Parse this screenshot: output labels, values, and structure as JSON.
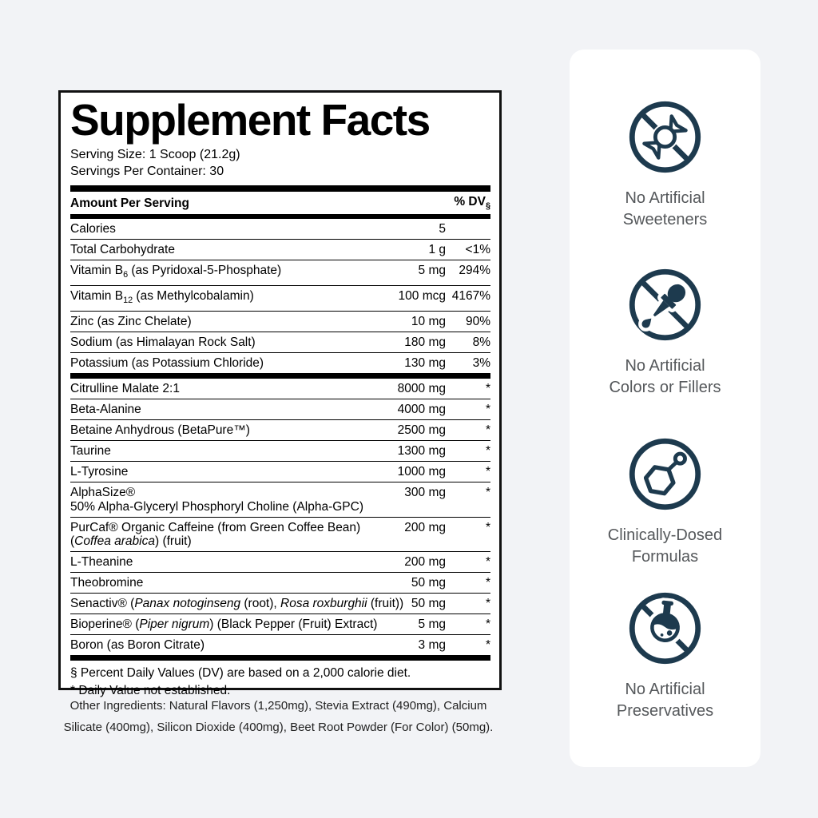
{
  "colors": {
    "icon_navy": "#1d3a4e",
    "badge_text": "#55585b",
    "page_background": "#f2f3f6"
  },
  "supplement_facts": {
    "title": "Supplement Facts",
    "serving_size": "Serving Size: 1 Scoop (21.2g)",
    "servings_per_container": "Servings Per Container: 30",
    "column_header": {
      "left": "Amount Per Serving",
      "right": "% DV",
      "right_subscript": "§"
    },
    "daily_value_rows": [
      {
        "segments": [
          {
            "t": "Calories"
          }
        ],
        "amount": "5",
        "dv": ""
      },
      {
        "segments": [
          {
            "t": "Total Carbohydrate"
          }
        ],
        "amount": "1 g",
        "dv": "<1%"
      },
      {
        "segments": [
          {
            "t": "Vitamin B"
          },
          {
            "t": "6",
            "sub": true
          },
          {
            "t": " (as Pyridoxal-5-Phosphate)"
          }
        ],
        "amount": "5 mg",
        "dv": "294%"
      },
      {
        "segments": [
          {
            "t": "Vitamin B"
          },
          {
            "t": "12",
            "sub": true
          },
          {
            "t": " (as Methylcobalamin)"
          }
        ],
        "amount": "100 mcg",
        "dv": "4167%"
      },
      {
        "segments": [
          {
            "t": "Zinc (as Zinc Chelate)"
          }
        ],
        "amount": "10 mg",
        "dv": "90%"
      },
      {
        "segments": [
          {
            "t": "Sodium (as Himalayan Rock Salt)"
          }
        ],
        "amount": "180 mg",
        "dv": "8%"
      },
      {
        "segments": [
          {
            "t": "Potassium (as Potassium Chloride)"
          }
        ],
        "amount": "130 mg",
        "dv": "3%"
      }
    ],
    "blend_rows": [
      {
        "segments": [
          {
            "t": "Citrulline Malate 2:1"
          }
        ],
        "amount": "8000 mg",
        "dv": "*"
      },
      {
        "segments": [
          {
            "t": "Beta-Alanine"
          }
        ],
        "amount": "4000 mg",
        "dv": "*"
      },
      {
        "segments": [
          {
            "t": "Betaine Anhydrous (BetaPure™)"
          }
        ],
        "amount": "2500 mg",
        "dv": "*"
      },
      {
        "segments": [
          {
            "t": "Taurine"
          }
        ],
        "amount": "1300 mg",
        "dv": "*"
      },
      {
        "segments": [
          {
            "t": "L-Tyrosine"
          }
        ],
        "amount": "1000 mg",
        "dv": "*"
      },
      {
        "segments": [
          {
            "t": "AlphaSize®"
          }
        ],
        "line2": [
          {
            "t": "50% Alpha-Glyceryl Phosphoryl Choline (Alpha-GPC)"
          }
        ],
        "amount": "300 mg",
        "dv": "*"
      },
      {
        "segments": [
          {
            "t": "PurCaf® Organic Caffeine (from Green Coffee Bean)"
          }
        ],
        "line2": [
          {
            "t": "("
          },
          {
            "t": "Coffea arabica",
            "i": true
          },
          {
            "t": ") (fruit)"
          }
        ],
        "amount": "200 mg",
        "dv": "*"
      },
      {
        "segments": [
          {
            "t": "L-Theanine"
          }
        ],
        "amount": "200 mg",
        "dv": "*"
      },
      {
        "segments": [
          {
            "t": "Theobromine"
          }
        ],
        "amount": "50 mg",
        "dv": "*"
      },
      {
        "segments": [
          {
            "t": "Senactiv® ("
          },
          {
            "t": "Panax notoginseng",
            "i": true
          },
          {
            "t": " (root), "
          },
          {
            "t": "Rosa roxburghii",
            "i": true
          },
          {
            "t": " (fruit))"
          }
        ],
        "amount": "50 mg",
        "dv": "*"
      },
      {
        "segments": [
          {
            "t": "Bioperine® ("
          },
          {
            "t": "Piper nigrum",
            "i": true
          },
          {
            "t": ") (Black Pepper (Fruit) Extract)"
          }
        ],
        "amount": "5 mg",
        "dv": "*"
      },
      {
        "segments": [
          {
            "t": "Boron (as Boron Citrate)"
          }
        ],
        "amount": "3 mg",
        "dv": "*"
      }
    ],
    "footnotes": [
      "§ Percent Daily Values (DV) are based on a 2,000 calorie diet.",
      "* Daily Value not established."
    ]
  },
  "other_ingredients": "Other Ingredients: Natural Flavors (1,250mg), Stevia Extract (490mg), Calcium Silicate (400mg), Silicon Dioxide (400mg), Beet Root Powder (For Color) (50mg).",
  "badges": [
    {
      "icon": "no-artificial-sweeteners-icon",
      "glyph": "crossed-candy",
      "lines": [
        "No Artificial",
        "Sweeteners"
      ]
    },
    {
      "icon": "no-artificial-colors-icon",
      "glyph": "crossed-dropper",
      "lines": [
        "No Artificial",
        "Colors or Fillers"
      ]
    },
    {
      "icon": "clinically-dosed-icon",
      "glyph": "molecule",
      "lines": [
        "Clinically-Dosed",
        "Formulas"
      ]
    },
    {
      "icon": "no-artificial-preservatives-icon",
      "glyph": "crossed-flask",
      "lines": [
        "No Artificial",
        "Preservatives"
      ]
    }
  ]
}
